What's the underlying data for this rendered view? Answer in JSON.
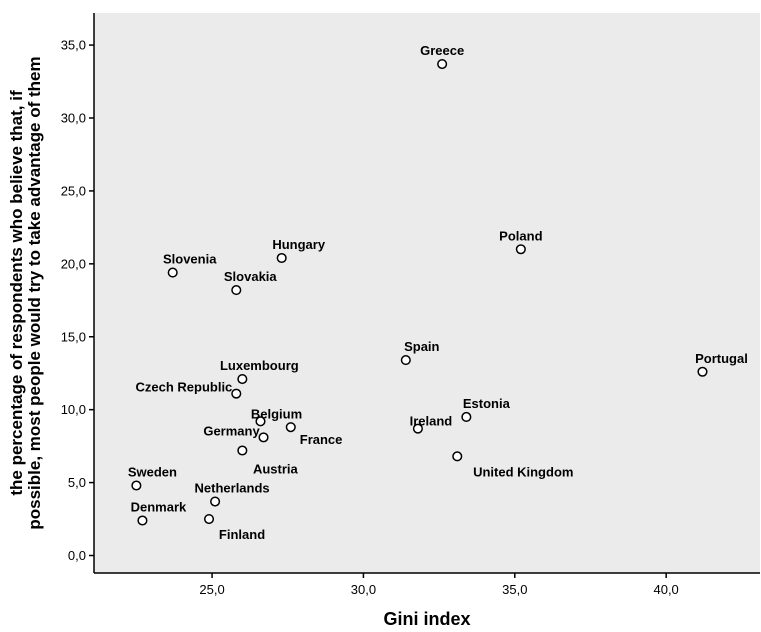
{
  "chart_data": {
    "type": "scatter",
    "title": "",
    "xlabel": "Gini index",
    "ylabel_lines": [
      "the percentage of respondents who believe that, if",
      "possible, most people would try to take advantage of them"
    ],
    "xlim": [
      21.1,
      43.1
    ],
    "ylim": [
      -1.2,
      37.2
    ],
    "xticks": [
      {
        "value": 25,
        "label": "25,0"
      },
      {
        "value": 30,
        "label": "30,0"
      },
      {
        "value": 35,
        "label": "35,0"
      },
      {
        "value": 40,
        "label": "40,0"
      }
    ],
    "yticks": [
      {
        "value": 0,
        "label": "0,0"
      },
      {
        "value": 5,
        "label": "5,0"
      },
      {
        "value": 10,
        "label": "10,0"
      },
      {
        "value": 15,
        "label": "15,0"
      },
      {
        "value": 20,
        "label": "20,0"
      },
      {
        "value": 25,
        "label": "25,0"
      },
      {
        "value": 30,
        "label": "30,0"
      },
      {
        "value": 35,
        "label": "35,0"
      }
    ],
    "grid": false,
    "background_color": "#ebebeb",
    "marker_color": "#000000",
    "points": [
      {
        "label": "Greece",
        "x": 32.6,
        "y": 33.7
      },
      {
        "label": "Poland",
        "x": 35.2,
        "y": 21.0
      },
      {
        "label": "Hungary",
        "x": 27.3,
        "y": 20.4
      },
      {
        "label": "Slovenia",
        "x": 23.7,
        "y": 19.4
      },
      {
        "label": "Slovakia",
        "x": 25.8,
        "y": 18.2
      },
      {
        "label": "Spain",
        "x": 31.4,
        "y": 13.4
      },
      {
        "label": "Portugal",
        "x": 41.2,
        "y": 12.6
      },
      {
        "label": "Luxembourg",
        "x": 26.0,
        "y": 12.1
      },
      {
        "label": "Czech Republic",
        "x": 25.8,
        "y": 11.1
      },
      {
        "label": "Estonia",
        "x": 33.4,
        "y": 9.5
      },
      {
        "label": "Belgium",
        "x": 26.6,
        "y": 9.2
      },
      {
        "label": "France",
        "x": 27.6,
        "y": 8.8
      },
      {
        "label": "Ireland",
        "x": 31.8,
        "y": 8.7
      },
      {
        "label": "Germany",
        "x": 26.7,
        "y": 8.1
      },
      {
        "label": "Austria",
        "x": 26.0,
        "y": 7.2
      },
      {
        "label": "United Kingdom",
        "x": 33.1,
        "y": 6.8
      },
      {
        "label": "Sweden",
        "x": 22.5,
        "y": 4.8
      },
      {
        "label": "Netherlands",
        "x": 25.1,
        "y": 3.7
      },
      {
        "label": "Finland",
        "x": 24.9,
        "y": 2.5
      },
      {
        "label": "Denmark",
        "x": 22.7,
        "y": 2.4
      }
    ]
  }
}
